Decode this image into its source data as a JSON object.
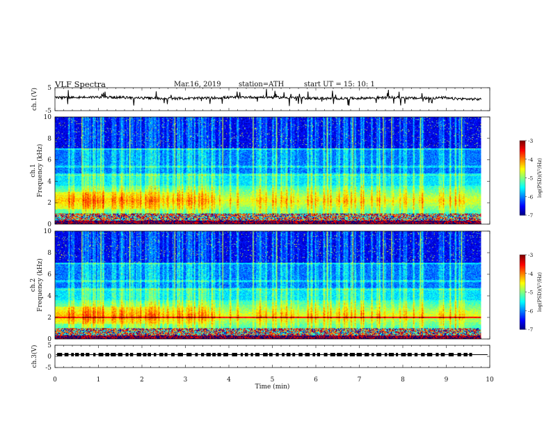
{
  "header": {
    "title": "VLF  Spectra",
    "date": "Mar.16, 2019",
    "station": "station=ATH",
    "start": "start  UT  =    15: 10: 1"
  },
  "chart_data": [
    {
      "type": "line",
      "panel": "ch1-waveform",
      "ylabel": "ch.1(V)",
      "ylim": [
        -5,
        5
      ],
      "yticks": [
        "5",
        "-5"
      ],
      "xlim": [
        0,
        10
      ],
      "trace_color": "#000000",
      "x_extent_min": 9.8,
      "baseline_v": 0.6
    },
    {
      "type": "heatmap",
      "panel": "ch1-spectrogram",
      "ylabel": "ch.1",
      "ylabel2": "Frequency  (kHz)",
      "ylim": [
        0,
        10
      ],
      "yticks": [
        "0",
        "2",
        "4",
        "6",
        "8",
        "10"
      ],
      "xlim": [
        0,
        10
      ],
      "data_xmax": 9.8,
      "colorbar": {
        "label": "log(PSD)(V²/Hz)",
        "min": -7,
        "max": -3,
        "ticks": [
          "-3",
          "-4",
          "-5",
          "-6",
          "-7"
        ]
      }
    },
    {
      "type": "heatmap",
      "panel": "ch2-spectrogram",
      "ylabel": "ch.2",
      "ylabel2": "Frequency  (kHz)",
      "ylim": [
        0,
        10
      ],
      "yticks": [
        "0",
        "2",
        "4",
        "6",
        "8",
        "10"
      ],
      "xlim": [
        0,
        10
      ],
      "data_xmax": 9.8,
      "colorbar": {
        "label": "log(PSD)(V²/Hz)",
        "min": -7,
        "max": -3,
        "ticks": [
          "-3",
          "-4",
          "-5",
          "-6",
          "-7"
        ]
      }
    },
    {
      "type": "line",
      "panel": "ch3-waveform",
      "ylabel": "ch.3(V)",
      "ylim": [
        -5,
        5
      ],
      "yticks": [
        "5",
        "0",
        "-5"
      ],
      "xlim": [
        0,
        10
      ],
      "xticks": [
        "0",
        "1",
        "2",
        "3",
        "4",
        "5",
        "6",
        "7",
        "8",
        "9",
        "10"
      ],
      "xlabel": "Time  (min)",
      "trace_color": "#000000",
      "level_v": 0.8
    }
  ]
}
